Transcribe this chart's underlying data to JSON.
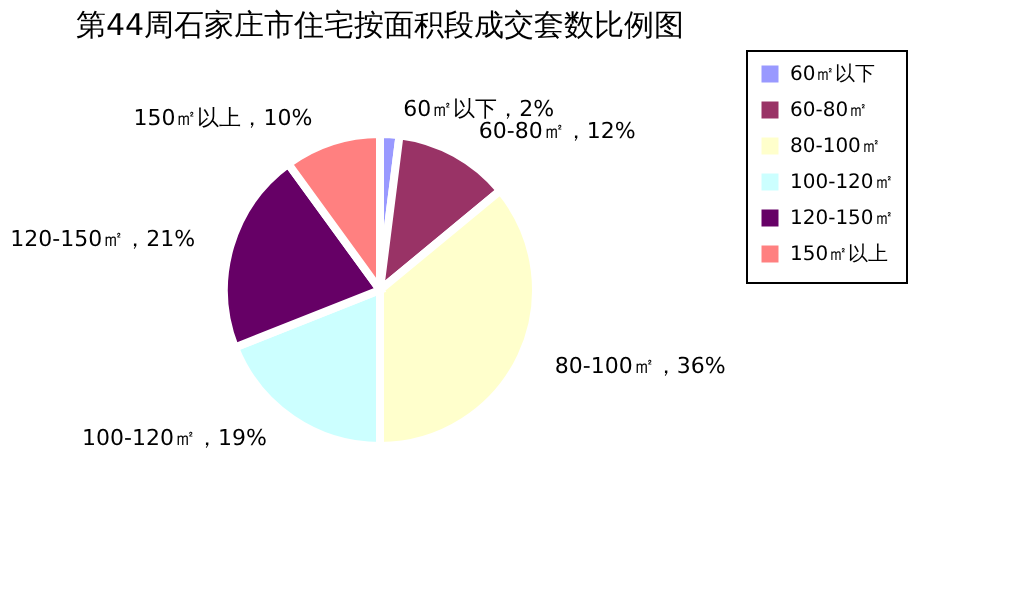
{
  "chart_data": {
    "type": "pie",
    "title": "第44周石家庄市住宅按面积段成交套数比例图",
    "categories": [
      "60㎡以下",
      "60-80㎡",
      "80-100㎡",
      "100-120㎡",
      "120-150㎡",
      "150㎡以上"
    ],
    "values": [
      2,
      12,
      36,
      19,
      21,
      10
    ],
    "colors": [
      "#9999ff",
      "#993366",
      "#ffffcc",
      "#ccffff",
      "#660066",
      "#ff8080"
    ],
    "value_labels": [
      "60㎡以下，2%",
      "60-80㎡，12%",
      "80-100㎡，36%",
      "100-120㎡，19%",
      "120-150㎡，21%",
      "150㎡以上，10%"
    ],
    "legend": "right"
  }
}
